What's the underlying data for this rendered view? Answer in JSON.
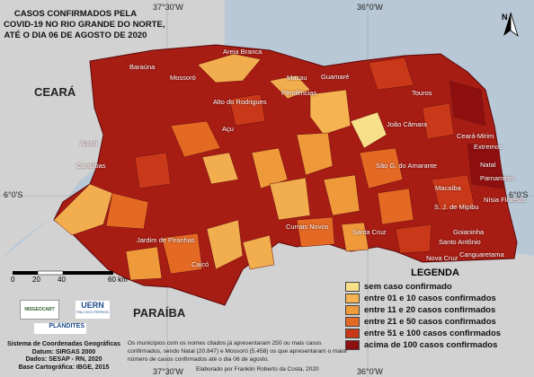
{
  "title_lines": [
    "CASOS CONFIRMADOS PELA",
    "COVID-19 NO RIO GRANDE DO NORTE,",
    "ATÉ O DIA 06 DE AGOSTO DE 2020"
  ],
  "coordinates": {
    "top_left": "37°30'W",
    "top_right": "36°0'W",
    "bottom_left": "37°30'W",
    "bottom_right": "36°0'W",
    "left_lat": "6°0'S",
    "right_lat": "6°0'S"
  },
  "states": {
    "ceara": "CEARÁ",
    "paraiba": "PARAÍBA"
  },
  "north_label": "N",
  "municipalities": [
    "Areia Branca",
    "Baraúna",
    "Mossoró",
    "Macau",
    "Guamaré",
    "Pendências",
    "Touros",
    "Alto do Rodrigues",
    "João Câmara",
    "Açu",
    "Ceará-Mirim",
    "Extremoz",
    "Apodi",
    "Natal",
    "São G. do Amarante",
    "Parnamirim",
    "Caraúbas",
    "Macaíba",
    "Nísia Floresta",
    "S. J. de Mipibu",
    "Goianinha",
    "Currais Novos",
    "Santa Cruz",
    "Jardim de Piranhas",
    "Santo Antônio",
    "Nova Cruz",
    "Canguaretama",
    "Caicó"
  ],
  "legend": {
    "title": "LEGENDA",
    "items": [
      {
        "label": "sem caso confirmado",
        "color": "#f7e08a"
      },
      {
        "label": "entre 01 e 10 casos confirmados",
        "color": "#f5b352"
      },
      {
        "label": "entre 11 e 20 casos confirmados",
        "color": "#ef9a3a"
      },
      {
        "label": "entre 21 e 50 casos confirmados",
        "color": "#e46a24"
      },
      {
        "label": "entre 51 e 100 casos confirmados",
        "color": "#c93818"
      },
      {
        "label": "acima de 100 casos confirmados",
        "color": "#8e0f10"
      }
    ]
  },
  "scale": {
    "ticks": [
      "0",
      "20",
      "40",
      "60 km"
    ]
  },
  "logos": {
    "nisgeo": "NISGEOCART",
    "uern": "UERN",
    "uern_sub": "PAU DOS FERROS",
    "plandites": "PLANDITES"
  },
  "credits": [
    "Sistema de Coordenadas Geográficas",
    "Datum: SIRGAS 2000",
    "Dados: SESAP - RN, 2020",
    "Base Cartográfica: IBGE, 2015"
  ],
  "note": "Os municípios com os nomes citados já apresentaram 250 ou mais casos confirmados, sendo Natal (20.847) e Mossoró (5.458) os que apresentaram o maior número de casos confirmados até o dia 06 de agosto.",
  "author": "Elaborado por Franklin Roberto da Costa, 2020"
}
